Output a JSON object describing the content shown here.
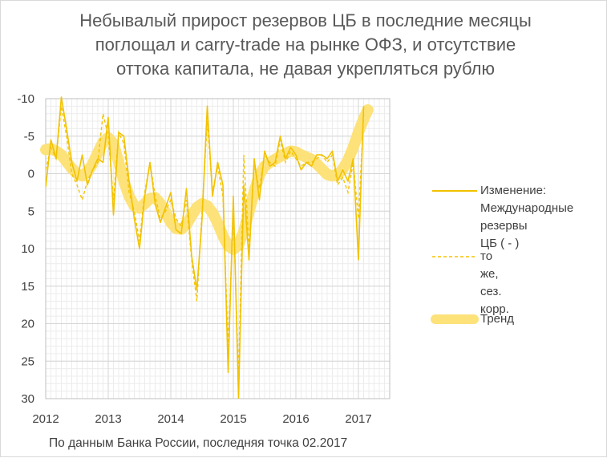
{
  "chart_data": {
    "type": "line",
    "title_lines": [
      "Небывалый прирост резервов ЦБ в последние месяцы",
      "поглощал и carry-trade на рынке ОФЗ, и отсутствие",
      "оттока капитала, не давая укрепляться рублю"
    ],
    "footnote": "По данным Банка России, последняя точка 02.2017",
    "y_axis": {
      "min": -10,
      "max": 30,
      "inverted": true,
      "step": 5,
      "tick_labels": [
        "-10",
        "-5",
        "0",
        "5",
        "10",
        "15",
        "20",
        "25",
        "30"
      ]
    },
    "x_axis": {
      "min": 2012,
      "max": 2017.5,
      "tick_labels": [
        "2012",
        "2013",
        "2014",
        "2015",
        "2016",
        "2017"
      ]
    },
    "grid": true,
    "legend_position": "right",
    "colors": {
      "raw": "#f2c200",
      "sa": "#f5c400",
      "trend": "#fde27a",
      "grid": "#e3e3e3",
      "text": "#404040"
    },
    "series": [
      {
        "name": "Изменение: Международные резервы ЦБ ( - )",
        "legend_lines": [
          "Изменение:",
          "Международные",
          "резервы ЦБ ( - )"
        ],
        "style": "solid",
        "x": [
          2012.0,
          2012.083,
          2012.167,
          2012.25,
          2012.333,
          2012.417,
          2012.5,
          2012.583,
          2012.667,
          2012.75,
          2012.833,
          2012.917,
          2013.0,
          2013.083,
          2013.167,
          2013.25,
          2013.333,
          2013.417,
          2013.5,
          2013.583,
          2013.667,
          2013.75,
          2013.833,
          2013.917,
          2014.0,
          2014.083,
          2014.167,
          2014.25,
          2014.333,
          2014.417,
          2014.5,
          2014.583,
          2014.667,
          2014.75,
          2014.833,
          2014.917,
          2015.0,
          2015.083,
          2015.167,
          2015.25,
          2015.333,
          2015.417,
          2015.5,
          2015.583,
          2015.667,
          2015.75,
          2015.833,
          2015.917,
          2016.0,
          2016.083,
          2016.167,
          2016.25,
          2016.333,
          2016.417,
          2016.5,
          2016.583,
          2016.667,
          2016.75,
          2016.833,
          2016.917,
          2017.0,
          2017.083
        ],
        "values": [
          1.8,
          -4.5,
          -2.0,
          -10.2,
          -6.0,
          -1.5,
          1.0,
          -2.5,
          1.5,
          -0.5,
          -2.0,
          -1.5,
          -7.5,
          5.5,
          -5.5,
          -5.0,
          1.0,
          6.0,
          10.0,
          3.0,
          -1.5,
          4.0,
          6.5,
          4.5,
          2.5,
          7.5,
          8.0,
          2.0,
          11.0,
          15.5,
          6.0,
          -9.0,
          3.0,
          -1.5,
          1.5,
          26.5,
          3.0,
          30.0,
          1.5,
          11.5,
          -2.0,
          3.5,
          -3.0,
          -1.0,
          -1.5,
          -5.0,
          -2.0,
          -3.5,
          -2.5,
          -0.5,
          -1.5,
          -1.0,
          -2.5,
          -2.5,
          -2.0,
          -3.0,
          1.0,
          -0.5,
          1.0,
          -2.0,
          11.5,
          -9.0
        ]
      },
      {
        "name": "то же, сез. корр.",
        "legend_lines": [
          "то же, сез. корр."
        ],
        "style": "dashed",
        "x": [
          2012.0,
          2012.083,
          2012.167,
          2012.25,
          2012.333,
          2012.417,
          2012.5,
          2012.583,
          2012.667,
          2012.75,
          2012.833,
          2012.917,
          2013.0,
          2013.083,
          2013.167,
          2013.25,
          2013.333,
          2013.417,
          2013.5,
          2013.583,
          2013.667,
          2013.75,
          2013.833,
          2013.917,
          2014.0,
          2014.083,
          2014.167,
          2014.25,
          2014.333,
          2014.417,
          2014.5,
          2014.583,
          2014.667,
          2014.75,
          2014.833,
          2014.917,
          2015.0,
          2015.083,
          2015.167,
          2015.25,
          2015.333,
          2015.417,
          2015.5,
          2015.583,
          2015.667,
          2015.75,
          2015.833,
          2015.917,
          2016.0,
          2016.083,
          2016.167,
          2016.25,
          2016.333,
          2016.417,
          2016.5,
          2016.583,
          2016.667,
          2016.75,
          2016.833,
          2016.917,
          2017.0,
          2017.083
        ],
        "values": [
          -0.5,
          -3.5,
          -2.0,
          -9.0,
          -5.0,
          0.0,
          1.5,
          3.5,
          1.0,
          -0.5,
          -1.5,
          -8.0,
          -5.0,
          3.5,
          -5.5,
          -4.0,
          2.5,
          5.0,
          9.0,
          2.5,
          -1.5,
          3.0,
          6.0,
          5.0,
          3.5,
          6.0,
          7.0,
          3.5,
          11.5,
          17.0,
          5.0,
          -7.0,
          2.5,
          -1.0,
          3.0,
          23.0,
          5.0,
          27.0,
          -2.5,
          10.0,
          -1.0,
          2.0,
          -2.5,
          -1.5,
          -1.0,
          -4.5,
          -1.5,
          -3.0,
          -2.0,
          -1.0,
          -1.5,
          -1.5,
          -2.0,
          -2.5,
          -1.5,
          -2.5,
          1.5,
          0.5,
          2.5,
          -1.5,
          6.0,
          -8.0
        ]
      },
      {
        "name": "Тренд",
        "legend_lines": [
          "Тренд"
        ],
        "style": "thick",
        "x": [
          2012.0,
          2012.083,
          2012.167,
          2012.25,
          2012.333,
          2012.417,
          2012.5,
          2012.583,
          2012.667,
          2012.75,
          2012.833,
          2012.917,
          2013.0,
          2013.083,
          2013.167,
          2013.25,
          2013.333,
          2013.417,
          2013.5,
          2013.583,
          2013.667,
          2013.75,
          2013.833,
          2013.917,
          2014.0,
          2014.083,
          2014.167,
          2014.25,
          2014.333,
          2014.417,
          2014.5,
          2014.583,
          2014.667,
          2014.75,
          2014.833,
          2014.917,
          2015.0,
          2015.083,
          2015.167,
          2015.25,
          2015.333,
          2015.417,
          2015.5,
          2015.583,
          2015.667,
          2015.75,
          2015.833,
          2015.917,
          2016.0,
          2016.083,
          2016.167,
          2016.25,
          2016.333,
          2016.417,
          2016.5,
          2016.583,
          2016.667,
          2016.75,
          2016.833,
          2016.917,
          2017.0,
          2017.083,
          2017.15
        ],
        "values": [
          -3.2,
          -3.3,
          -3.0,
          -2.5,
          -1.6,
          -0.7,
          0.0,
          0.3,
          -0.2,
          -1.3,
          -2.8,
          -4.2,
          -4.8,
          -4.0,
          -1.5,
          1.0,
          3.0,
          4.3,
          4.6,
          4.0,
          3.3,
          3.2,
          4.0,
          5.2,
          6.5,
          7.3,
          7.4,
          6.8,
          5.6,
          4.5,
          4.0,
          4.3,
          5.2,
          6.6,
          8.3,
          9.6,
          10.1,
          9.5,
          7.7,
          5.1,
          2.4,
          0.2,
          -1.0,
          -1.5,
          -1.9,
          -2.3,
          -2.7,
          -3.0,
          -2.9,
          -2.5,
          -2.2,
          -1.9,
          -1.3,
          -0.6,
          0.1,
          0.3,
          0.1,
          -0.6,
          -1.8,
          -3.5,
          -5.5,
          -7.3,
          -8.5
        ]
      }
    ]
  }
}
